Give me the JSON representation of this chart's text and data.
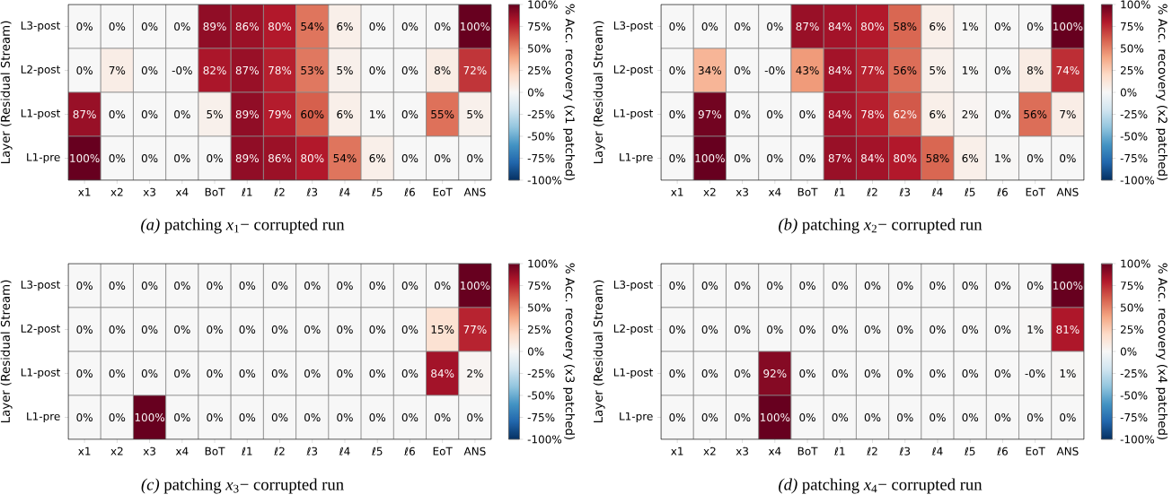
{
  "chart_data": [
    {
      "type": "heatmap",
      "ylabel": "Layer (Residual Stream)",
      "clabel": "% Acc. recovery (x1 patched)",
      "categories": [
        "x1",
        "x2",
        "x3",
        "x4",
        "BoT",
        "ℓ1",
        "ℓ2",
        "ℓ3",
        "ℓ4",
        "ℓ5",
        "ℓ6",
        "EoT",
        "ANS"
      ],
      "y_categories": [
        "L3-post",
        "L2-post",
        "L1-post",
        "L1-pre"
      ],
      "cells": [
        [
          0,
          0,
          0,
          0,
          89,
          86,
          80,
          54,
          6,
          0,
          0,
          0,
          100
        ],
        [
          0,
          7,
          0,
          0,
          82,
          87,
          78,
          53,
          5,
          0,
          0,
          8,
          72
        ],
        [
          87,
          0,
          0,
          0,
          5,
          89,
          79,
          60,
          6,
          1,
          0,
          55,
          5
        ],
        [
          100,
          0,
          0,
          0,
          0,
          89,
          86,
          80,
          54,
          6,
          0,
          0,
          0
        ]
      ],
      "cell_labels": [
        [
          "0%",
          "0%",
          "0%",
          "0%",
          "89%",
          "86%",
          "80%",
          "54%",
          "6%",
          "0%",
          "0%",
          "0%",
          "100%"
        ],
        [
          "0%",
          "7%",
          "0%",
          "-0%",
          "82%",
          "87%",
          "78%",
          "53%",
          "5%",
          "0%",
          "0%",
          "8%",
          "72%"
        ],
        [
          "87%",
          "0%",
          "0%",
          "0%",
          "5%",
          "89%",
          "79%",
          "60%",
          "6%",
          "1%",
          "0%",
          "55%",
          "5%"
        ],
        [
          "100%",
          "0%",
          "0%",
          "0%",
          "0%",
          "89%",
          "86%",
          "80%",
          "54%",
          "6%",
          "0%",
          "0%",
          "0%"
        ]
      ],
      "clim": [
        -100,
        100
      ],
      "cticks": [
        {
          "value": -100,
          "label": "-100%"
        },
        {
          "value": -75,
          "label": "-75%"
        },
        {
          "value": -50,
          "label": "-50%"
        },
        {
          "value": -25,
          "label": "-25%"
        },
        {
          "value": 0,
          "label": "0%"
        },
        {
          "value": 25,
          "label": "25%"
        },
        {
          "value": 50,
          "label": "50%"
        },
        {
          "value": 75,
          "label": "75%"
        },
        {
          "value": 100,
          "label": "100%"
        }
      ],
      "annotations": [
        "*(a)* patching *x*$_{1}$− corrupted run"
      ]
    },
    {
      "type": "heatmap",
      "ylabel": "Layer (Residual Stream)",
      "clabel": "% Acc. recovery (x2 patched)",
      "categories": [
        "x1",
        "x2",
        "x3",
        "x4",
        "BoT",
        "ℓ1",
        "ℓ2",
        "ℓ3",
        "ℓ4",
        "ℓ5",
        "ℓ6",
        "EoT",
        "ANS"
      ],
      "y_categories": [
        "L3-post",
        "L2-post",
        "L1-post",
        "L1-pre"
      ],
      "cells": [
        [
          0,
          0,
          0,
          0,
          87,
          84,
          80,
          58,
          6,
          1,
          0,
          0,
          100
        ],
        [
          0,
          34,
          0,
          0,
          43,
          84,
          77,
          56,
          5,
          1,
          0,
          8,
          74
        ],
        [
          0,
          97,
          0,
          0,
          0,
          84,
          78,
          62,
          6,
          2,
          0,
          56,
          7
        ],
        [
          0,
          100,
          0,
          0,
          0,
          87,
          84,
          80,
          58,
          6,
          1,
          0,
          0
        ]
      ],
      "cell_labels": [
        [
          "0%",
          "0%",
          "0%",
          "0%",
          "87%",
          "84%",
          "80%",
          "58%",
          "6%",
          "1%",
          "0%",
          "0%",
          "100%"
        ],
        [
          "0%",
          "34%",
          "0%",
          "-0%",
          "43%",
          "84%",
          "77%",
          "56%",
          "5%",
          "1%",
          "0%",
          "8%",
          "74%"
        ],
        [
          "0%",
          "97%",
          "0%",
          "0%",
          "0%",
          "84%",
          "78%",
          "62%",
          "6%",
          "2%",
          "0%",
          "56%",
          "7%"
        ],
        [
          "0%",
          "100%",
          "0%",
          "0%",
          "0%",
          "87%",
          "84%",
          "80%",
          "58%",
          "6%",
          "1%",
          "0%",
          "0%"
        ]
      ],
      "clim": [
        -100,
        100
      ],
      "cticks": [
        {
          "value": -100,
          "label": "-100%"
        },
        {
          "value": -75,
          "label": "-75%"
        },
        {
          "value": -50,
          "label": "-50%"
        },
        {
          "value": -25,
          "label": "-25%"
        },
        {
          "value": 0,
          "label": "0%"
        },
        {
          "value": 25,
          "label": "25%"
        },
        {
          "value": 50,
          "label": "50%"
        },
        {
          "value": 75,
          "label": "75%"
        },
        {
          "value": 100,
          "label": "100%"
        }
      ],
      "annotations": [
        "*(b)* patching *x*$_{2}$− corrupted run"
      ]
    },
    {
      "type": "heatmap",
      "ylabel": "Layer (Residual Stream)",
      "clabel": "% Acc. recovery (x3 patched)",
      "categories": [
        "x1",
        "x2",
        "x3",
        "x4",
        "BoT",
        "ℓ1",
        "ℓ2",
        "ℓ3",
        "ℓ4",
        "ℓ5",
        "ℓ6",
        "EoT",
        "ANS"
      ],
      "y_categories": [
        "L3-post",
        "L2-post",
        "L1-post",
        "L1-pre"
      ],
      "cells": [
        [
          0,
          0,
          0,
          0,
          0,
          0,
          0,
          0,
          0,
          0,
          0,
          0,
          100
        ],
        [
          0,
          0,
          0,
          0,
          0,
          0,
          0,
          0,
          0,
          0,
          0,
          15,
          77
        ],
        [
          0,
          0,
          0,
          0,
          0,
          0,
          0,
          0,
          0,
          0,
          0,
          84,
          2
        ],
        [
          0,
          0,
          100,
          0,
          0,
          0,
          0,
          0,
          0,
          0,
          0,
          0,
          0
        ]
      ],
      "cell_labels": [
        [
          "0%",
          "0%",
          "0%",
          "0%",
          "0%",
          "0%",
          "0%",
          "0%",
          "0%",
          "0%",
          "0%",
          "0%",
          "100%"
        ],
        [
          "0%",
          "0%",
          "0%",
          "0%",
          "0%",
          "0%",
          "0%",
          "0%",
          "0%",
          "0%",
          "0%",
          "15%",
          "77%"
        ],
        [
          "0%",
          "0%",
          "0%",
          "0%",
          "0%",
          "0%",
          "0%",
          "0%",
          "0%",
          "0%",
          "0%",
          "84%",
          "2%"
        ],
        [
          "0%",
          "0%",
          "100%",
          "0%",
          "0%",
          "0%",
          "0%",
          "0%",
          "0%",
          "0%",
          "0%",
          "0%",
          "0%"
        ]
      ],
      "clim": [
        -100,
        100
      ],
      "cticks": [
        {
          "value": -100,
          "label": "-100%"
        },
        {
          "value": -75,
          "label": "-75%"
        },
        {
          "value": -50,
          "label": "-50%"
        },
        {
          "value": -25,
          "label": "-25%"
        },
        {
          "value": 0,
          "label": "0%"
        },
        {
          "value": 25,
          "label": "25%"
        },
        {
          "value": 50,
          "label": "50%"
        },
        {
          "value": 75,
          "label": "75%"
        },
        {
          "value": 100,
          "label": "100%"
        }
      ],
      "annotations": [
        "*(c)* patching *x*$_{3}$− corrupted run"
      ]
    },
    {
      "type": "heatmap",
      "ylabel": "Layer (Residual Stream)",
      "clabel": "% Acc. recovery (x4 patched)",
      "categories": [
        "x1",
        "x2",
        "x3",
        "x4",
        "BoT",
        "ℓ1",
        "ℓ2",
        "ℓ3",
        "ℓ4",
        "ℓ5",
        "ℓ6",
        "EoT",
        "ANS"
      ],
      "y_categories": [
        "L3-post",
        "L2-post",
        "L1-post",
        "L1-pre"
      ],
      "cells": [
        [
          0,
          0,
          0,
          0,
          0,
          0,
          0,
          0,
          0,
          0,
          0,
          0,
          100
        ],
        [
          0,
          0,
          0,
          0,
          0,
          0,
          0,
          0,
          0,
          0,
          0,
          1,
          81
        ],
        [
          0,
          0,
          0,
          92,
          0,
          0,
          0,
          0,
          0,
          0,
          0,
          0,
          1
        ],
        [
          0,
          0,
          0,
          100,
          0,
          0,
          0,
          0,
          0,
          0,
          0,
          0,
          0
        ]
      ],
      "cell_labels": [
        [
          "0%",
          "0%",
          "0%",
          "0%",
          "0%",
          "0%",
          "0%",
          "0%",
          "0%",
          "0%",
          "0%",
          "0%",
          "100%"
        ],
        [
          "0%",
          "0%",
          "0%",
          "0%",
          "0%",
          "0%",
          "0%",
          "0%",
          "0%",
          "0%",
          "0%",
          "1%",
          "81%"
        ],
        [
          "0%",
          "0%",
          "0%",
          "92%",
          "0%",
          "0%",
          "0%",
          "0%",
          "0%",
          "0%",
          "0%",
          "-0%",
          "1%"
        ],
        [
          "0%",
          "0%",
          "0%",
          "100%",
          "0%",
          "0%",
          "0%",
          "0%",
          "0%",
          "0%",
          "0%",
          "0%",
          "0%"
        ]
      ],
      "clim": [
        -100,
        100
      ],
      "cticks": [
        {
          "value": -100,
          "label": "-100%"
        },
        {
          "value": -75,
          "label": "-75%"
        },
        {
          "value": -50,
          "label": "-50%"
        },
        {
          "value": -25,
          "label": "-25%"
        },
        {
          "value": 0,
          "label": "0%"
        },
        {
          "value": 25,
          "label": "25%"
        },
        {
          "value": 50,
          "label": "50%"
        },
        {
          "value": 75,
          "label": "75%"
        },
        {
          "value": 100,
          "label": "100%"
        }
      ],
      "annotations": [
        "*(d)* patching *x*$_{4}$− corrupted run"
      ]
    }
  ]
}
